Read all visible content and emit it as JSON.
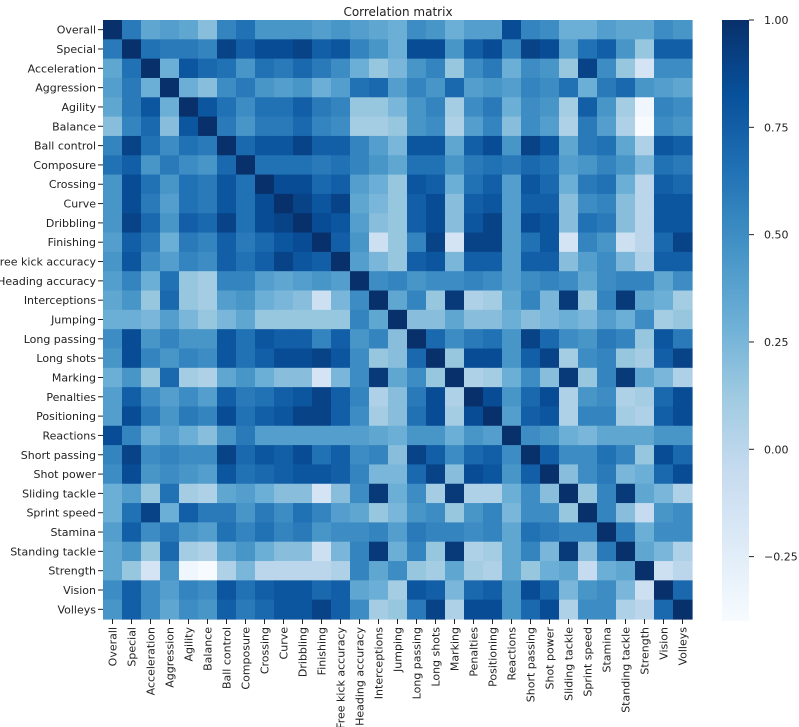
{
  "colors": {
    "background": "#ffffff",
    "text": "#222222",
    "colormap": "Blues",
    "scale_low": "#f7fbff",
    "scale_high": "#08306b"
  },
  "chart_data": {
    "type": "heatmap",
    "title": "Correlation matrix",
    "xlabel": "",
    "ylabel": "",
    "vmin": -0.4,
    "vmax": 1.0,
    "colorbar_ticks": [
      1.0,
      0.75,
      0.5,
      0.25,
      0.0,
      -0.25
    ],
    "colorbar_tick_labels": [
      "1.00",
      "0.75",
      "0.50",
      "0.25",
      "0.00",
      "−0.25"
    ],
    "labels": [
      "Overall",
      "Special",
      "Acceleration",
      "Aggression",
      "Agility",
      "Balance",
      "Ball control",
      "Composure",
      "Crossing",
      "Curve",
      "Dribbling",
      "Finishing",
      "Free kick accuracy",
      "Heading accuracy",
      "Interceptions",
      "Jumping",
      "Long passing",
      "Long shots",
      "Marking",
      "Penalties",
      "Positioning",
      "Reactions",
      "Short passing",
      "Shot power",
      "Sliding tackle",
      "Sprint speed",
      "Stamina",
      "Standing tackle",
      "Strength",
      "Vision",
      "Volleys"
    ],
    "matrix": [
      [
        1.0,
        0.6,
        0.35,
        0.4,
        0.35,
        0.2,
        0.55,
        0.65,
        0.45,
        0.45,
        0.45,
        0.4,
        0.45,
        0.4,
        0.35,
        0.3,
        0.5,
        0.45,
        0.3,
        0.4,
        0.4,
        0.85,
        0.55,
        0.5,
        0.3,
        0.3,
        0.4,
        0.35,
        0.35,
        0.5,
        0.45
      ],
      [
        0.6,
        1.0,
        0.65,
        0.6,
        0.6,
        0.55,
        0.9,
        0.75,
        0.85,
        0.85,
        0.9,
        0.75,
        0.8,
        0.55,
        0.45,
        0.3,
        0.85,
        0.85,
        0.45,
        0.75,
        0.85,
        0.55,
        0.9,
        0.85,
        0.4,
        0.65,
        0.75,
        0.45,
        0.15,
        0.75,
        0.75
      ],
      [
        0.35,
        0.65,
        1.0,
        0.3,
        0.8,
        0.7,
        0.65,
        0.45,
        0.65,
        0.6,
        0.7,
        0.6,
        0.5,
        0.3,
        0.15,
        0.25,
        0.45,
        0.55,
        0.15,
        0.5,
        0.6,
        0.3,
        0.5,
        0.45,
        0.15,
        0.9,
        0.5,
        0.15,
        -0.15,
        0.5,
        0.5
      ],
      [
        0.4,
        0.6,
        0.3,
        1.0,
        0.3,
        0.2,
        0.5,
        0.6,
        0.45,
        0.4,
        0.45,
        0.3,
        0.4,
        0.65,
        0.7,
        0.4,
        0.55,
        0.45,
        0.7,
        0.4,
        0.45,
        0.4,
        0.55,
        0.5,
        0.65,
        0.3,
        0.6,
        0.7,
        0.45,
        0.4,
        0.35
      ],
      [
        0.35,
        0.6,
        0.8,
        0.3,
        1.0,
        0.8,
        0.65,
        0.5,
        0.65,
        0.65,
        0.75,
        0.6,
        0.55,
        0.15,
        0.15,
        0.25,
        0.45,
        0.55,
        0.1,
        0.5,
        0.6,
        0.3,
        0.5,
        0.45,
        0.1,
        0.75,
        0.45,
        0.1,
        -0.35,
        0.55,
        0.5
      ],
      [
        0.2,
        0.55,
        0.7,
        0.2,
        0.8,
        1.0,
        0.6,
        0.45,
        0.6,
        0.6,
        0.7,
        0.55,
        0.5,
        0.1,
        0.1,
        0.15,
        0.45,
        0.5,
        0.05,
        0.4,
        0.55,
        0.2,
        0.5,
        0.4,
        0.05,
        0.6,
        0.4,
        0.05,
        -0.4,
        0.5,
        0.45
      ],
      [
        0.55,
        0.9,
        0.65,
        0.5,
        0.65,
        0.6,
        1.0,
        0.7,
        0.8,
        0.8,
        0.9,
        0.75,
        0.75,
        0.55,
        0.4,
        0.25,
        0.8,
        0.8,
        0.35,
        0.75,
        0.85,
        0.45,
        0.9,
        0.8,
        0.35,
        0.6,
        0.65,
        0.35,
        0.05,
        0.8,
        0.75
      ],
      [
        0.65,
        0.75,
        0.45,
        0.6,
        0.5,
        0.45,
        0.7,
        1.0,
        0.65,
        0.65,
        0.65,
        0.6,
        0.65,
        0.55,
        0.45,
        0.35,
        0.65,
        0.65,
        0.45,
        0.6,
        0.65,
        0.6,
        0.7,
        0.65,
        0.4,
        0.45,
        0.55,
        0.45,
        0.25,
        0.65,
        0.6
      ],
      [
        0.45,
        0.85,
        0.65,
        0.45,
        0.65,
        0.6,
        0.8,
        0.65,
        1.0,
        0.85,
        0.85,
        0.7,
        0.75,
        0.4,
        0.3,
        0.15,
        0.8,
        0.75,
        0.3,
        0.65,
        0.75,
        0.4,
        0.8,
        0.7,
        0.3,
        0.6,
        0.65,
        0.3,
        0.0,
        0.75,
        0.7
      ],
      [
        0.45,
        0.85,
        0.6,
        0.4,
        0.65,
        0.6,
        0.8,
        0.65,
        0.85,
        1.0,
        0.9,
        0.8,
        0.9,
        0.35,
        0.25,
        0.15,
        0.75,
        0.85,
        0.2,
        0.75,
        0.8,
        0.4,
        0.75,
        0.75,
        0.2,
        0.5,
        0.55,
        0.2,
        0.0,
        0.8,
        0.8
      ],
      [
        0.45,
        0.9,
        0.7,
        0.45,
        0.75,
        0.7,
        0.9,
        0.65,
        0.85,
        0.9,
        1.0,
        0.85,
        0.8,
        0.4,
        0.2,
        0.15,
        0.75,
        0.85,
        0.2,
        0.8,
        0.9,
        0.4,
        0.85,
        0.8,
        0.2,
        0.65,
        0.6,
        0.2,
        0.0,
        0.8,
        0.8
      ],
      [
        0.4,
        0.75,
        0.6,
        0.3,
        0.6,
        0.55,
        0.75,
        0.6,
        0.7,
        0.8,
        0.85,
        1.0,
        0.75,
        0.45,
        -0.1,
        0.15,
        0.55,
        0.9,
        -0.15,
        0.9,
        0.9,
        0.4,
        0.65,
        0.8,
        -0.15,
        0.55,
        0.45,
        -0.1,
        0.0,
        0.7,
        0.9
      ],
      [
        0.45,
        0.8,
        0.5,
        0.4,
        0.55,
        0.5,
        0.75,
        0.65,
        0.75,
        0.9,
        0.8,
        0.75,
        1.0,
        0.4,
        0.25,
        0.15,
        0.75,
        0.8,
        0.25,
        0.75,
        0.75,
        0.4,
        0.75,
        0.75,
        0.2,
        0.4,
        0.5,
        0.25,
        0.05,
        0.75,
        0.75
      ],
      [
        0.4,
        0.55,
        0.3,
        0.65,
        0.15,
        0.1,
        0.55,
        0.55,
        0.4,
        0.35,
        0.4,
        0.45,
        0.4,
        1.0,
        0.5,
        0.55,
        0.45,
        0.5,
        0.5,
        0.55,
        0.5,
        0.4,
        0.5,
        0.55,
        0.5,
        0.35,
        0.5,
        0.55,
        0.55,
        0.35,
        0.5
      ],
      [
        0.35,
        0.45,
        0.15,
        0.7,
        0.15,
        0.1,
        0.4,
        0.45,
        0.3,
        0.25,
        0.2,
        -0.1,
        0.25,
        0.5,
        1.0,
        0.35,
        0.55,
        0.15,
        0.95,
        0.05,
        0.1,
        0.35,
        0.55,
        0.25,
        0.95,
        0.15,
        0.55,
        0.95,
        0.35,
        0.3,
        0.1
      ],
      [
        0.3,
        0.3,
        0.25,
        0.4,
        0.25,
        0.15,
        0.25,
        0.35,
        0.15,
        0.15,
        0.15,
        0.15,
        0.15,
        0.55,
        0.35,
        1.0,
        0.2,
        0.2,
        0.35,
        0.2,
        0.2,
        0.3,
        0.2,
        0.25,
        0.3,
        0.25,
        0.4,
        0.3,
        0.5,
        0.1,
        0.15
      ],
      [
        0.5,
        0.85,
        0.45,
        0.55,
        0.45,
        0.45,
        0.8,
        0.65,
        0.8,
        0.75,
        0.75,
        0.55,
        0.75,
        0.45,
        0.55,
        0.2,
        1.0,
        0.7,
        0.5,
        0.6,
        0.65,
        0.45,
        0.9,
        0.7,
        0.5,
        0.45,
        0.6,
        0.55,
        0.15,
        0.8,
        0.6
      ],
      [
        0.45,
        0.85,
        0.55,
        0.45,
        0.55,
        0.5,
        0.8,
        0.65,
        0.75,
        0.85,
        0.85,
        0.9,
        0.8,
        0.5,
        0.15,
        0.2,
        0.7,
        1.0,
        0.15,
        0.85,
        0.85,
        0.45,
        0.75,
        0.9,
        0.1,
        0.5,
        0.55,
        0.15,
        0.1,
        0.75,
        0.9
      ],
      [
        0.3,
        0.45,
        0.15,
        0.7,
        0.1,
        0.05,
        0.35,
        0.45,
        0.3,
        0.2,
        0.2,
        -0.15,
        0.25,
        0.5,
        0.95,
        0.35,
        0.5,
        0.15,
        1.0,
        0.05,
        0.1,
        0.3,
        0.5,
        0.2,
        0.95,
        0.15,
        0.55,
        0.95,
        0.35,
        0.25,
        0.05
      ],
      [
        0.4,
        0.75,
        0.5,
        0.4,
        0.5,
        0.4,
        0.75,
        0.6,
        0.65,
        0.75,
        0.8,
        0.9,
        0.75,
        0.55,
        0.05,
        0.2,
        0.6,
        0.85,
        0.05,
        1.0,
        0.85,
        0.45,
        0.7,
        0.85,
        0.05,
        0.45,
        0.5,
        0.05,
        0.1,
        0.7,
        0.85
      ],
      [
        0.4,
        0.85,
        0.6,
        0.45,
        0.6,
        0.55,
        0.85,
        0.65,
        0.75,
        0.8,
        0.9,
        0.9,
        0.75,
        0.5,
        0.1,
        0.2,
        0.65,
        0.85,
        0.1,
        0.85,
        1.0,
        0.4,
        0.75,
        0.8,
        0.05,
        0.55,
        0.55,
        0.1,
        0.05,
        0.75,
        0.85
      ],
      [
        0.85,
        0.55,
        0.3,
        0.4,
        0.3,
        0.2,
        0.45,
        0.6,
        0.4,
        0.4,
        0.4,
        0.4,
        0.4,
        0.4,
        0.35,
        0.3,
        0.45,
        0.45,
        0.3,
        0.45,
        0.4,
        1.0,
        0.5,
        0.45,
        0.3,
        0.25,
        0.35,
        0.35,
        0.35,
        0.45,
        0.45
      ],
      [
        0.55,
        0.9,
        0.5,
        0.55,
        0.5,
        0.5,
        0.9,
        0.7,
        0.8,
        0.75,
        0.85,
        0.65,
        0.75,
        0.5,
        0.55,
        0.2,
        0.9,
        0.75,
        0.5,
        0.7,
        0.75,
        0.5,
        1.0,
        0.75,
        0.5,
        0.5,
        0.65,
        0.55,
        0.15,
        0.85,
        0.7
      ],
      [
        0.5,
        0.85,
        0.45,
        0.5,
        0.45,
        0.4,
        0.8,
        0.65,
        0.7,
        0.75,
        0.8,
        0.8,
        0.75,
        0.55,
        0.25,
        0.25,
        0.7,
        0.9,
        0.2,
        0.85,
        0.8,
        0.45,
        0.75,
        1.0,
        0.2,
        0.5,
        0.6,
        0.25,
        0.3,
        0.7,
        0.85
      ],
      [
        0.3,
        0.4,
        0.15,
        0.65,
        0.1,
        0.05,
        0.35,
        0.4,
        0.3,
        0.2,
        0.2,
        -0.15,
        0.2,
        0.5,
        0.95,
        0.3,
        0.5,
        0.1,
        0.95,
        0.05,
        0.05,
        0.3,
        0.5,
        0.2,
        1.0,
        0.15,
        0.55,
        0.95,
        0.35,
        0.25,
        0.05
      ],
      [
        0.3,
        0.65,
        0.9,
        0.3,
        0.75,
        0.6,
        0.6,
        0.45,
        0.6,
        0.5,
        0.65,
        0.55,
        0.4,
        0.35,
        0.15,
        0.25,
        0.45,
        0.5,
        0.15,
        0.45,
        0.55,
        0.25,
        0.5,
        0.5,
        0.15,
        1.0,
        0.55,
        0.2,
        -0.05,
        0.45,
        0.5
      ],
      [
        0.4,
        0.75,
        0.5,
        0.6,
        0.45,
        0.4,
        0.65,
        0.55,
        0.65,
        0.55,
        0.6,
        0.45,
        0.5,
        0.5,
        0.55,
        0.4,
        0.6,
        0.55,
        0.55,
        0.5,
        0.55,
        0.35,
        0.65,
        0.6,
        0.55,
        0.55,
        1.0,
        0.6,
        0.3,
        0.5,
        0.5
      ],
      [
        0.35,
        0.45,
        0.15,
        0.7,
        0.1,
        0.05,
        0.35,
        0.45,
        0.3,
        0.2,
        0.2,
        -0.1,
        0.25,
        0.55,
        0.95,
        0.3,
        0.55,
        0.15,
        0.95,
        0.05,
        0.1,
        0.35,
        0.55,
        0.25,
        0.95,
        0.2,
        0.6,
        1.0,
        0.35,
        0.25,
        0.05
      ],
      [
        0.35,
        0.15,
        -0.15,
        0.45,
        -0.35,
        -0.4,
        0.05,
        0.25,
        0.0,
        0.0,
        0.0,
        0.0,
        0.05,
        0.55,
        0.35,
        0.5,
        0.15,
        0.1,
        0.35,
        0.1,
        0.05,
        0.35,
        0.15,
        0.3,
        0.35,
        -0.05,
        0.3,
        0.35,
        1.0,
        -0.1,
        0.0
      ],
      [
        0.5,
        0.75,
        0.5,
        0.4,
        0.55,
        0.5,
        0.8,
        0.65,
        0.75,
        0.8,
        0.8,
        0.7,
        0.75,
        0.35,
        0.3,
        0.1,
        0.8,
        0.75,
        0.25,
        0.7,
        0.75,
        0.45,
        0.85,
        0.7,
        0.25,
        0.45,
        0.5,
        0.25,
        -0.1,
        1.0,
        0.7
      ],
      [
        0.45,
        0.75,
        0.5,
        0.35,
        0.5,
        0.45,
        0.75,
        0.6,
        0.7,
        0.8,
        0.8,
        0.9,
        0.75,
        0.5,
        0.1,
        0.15,
        0.6,
        0.9,
        0.05,
        0.85,
        0.85,
        0.45,
        0.7,
        0.85,
        0.05,
        0.5,
        0.5,
        0.05,
        0.0,
        0.7,
        1.0
      ]
    ]
  }
}
